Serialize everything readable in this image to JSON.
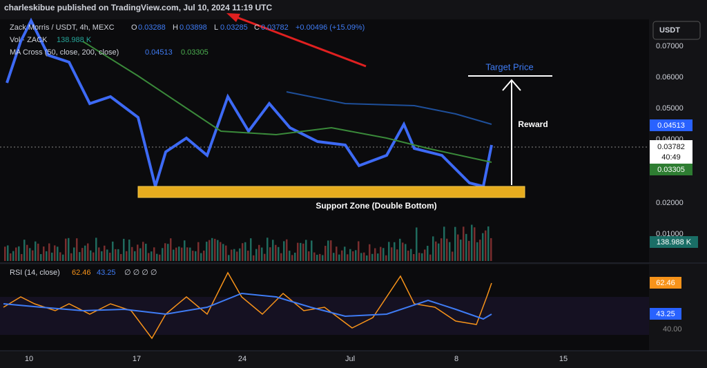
{
  "header": {
    "publisher": "charleskibue published on TradingView.com, Jul 10, 2024 11:19 UTC"
  },
  "legend": {
    "symbol": "Zack Morris / USDT, 4h, MEXC",
    "o_label": "O",
    "o": "0.03288",
    "h_label": "H",
    "h": "0.03898",
    "l_label": "L",
    "l": "0.03285",
    "c_label": "C",
    "c": "0.03782",
    "change": "+0.00496 (+15.09%)",
    "volume_label": "Vol · ZACK",
    "volume": "138.988 K",
    "ma_label": "MA Cross (50, close, 200, close)",
    "ma_fast": "0.04513",
    "ma_slow": "0.03305"
  },
  "currency": "USDT",
  "price_axis": [
    "0.07000",
    "0.06000",
    "0.05000",
    "0.04000",
    "0.02000",
    "0.01000"
  ],
  "badges": {
    "ma_fast": "0.04513",
    "last": "0.03782",
    "countdown": "40:49",
    "ma_slow": "0.03305",
    "volume": "138.988 K"
  },
  "annotations": {
    "target": "Target Price",
    "reward": "Reward",
    "support": "Support Zone (Double Bottom)"
  },
  "rsi": {
    "label": "RSI (14, close)",
    "value": "62.46",
    "ma": "43.25",
    "extra": "∅ ∅ ∅ ∅",
    "badge_value": "62.46",
    "badge_ma": "43.25",
    "level": "40.00"
  },
  "time_axis": [
    "10",
    "17",
    "24",
    "Jul",
    "8",
    "15"
  ]
}
